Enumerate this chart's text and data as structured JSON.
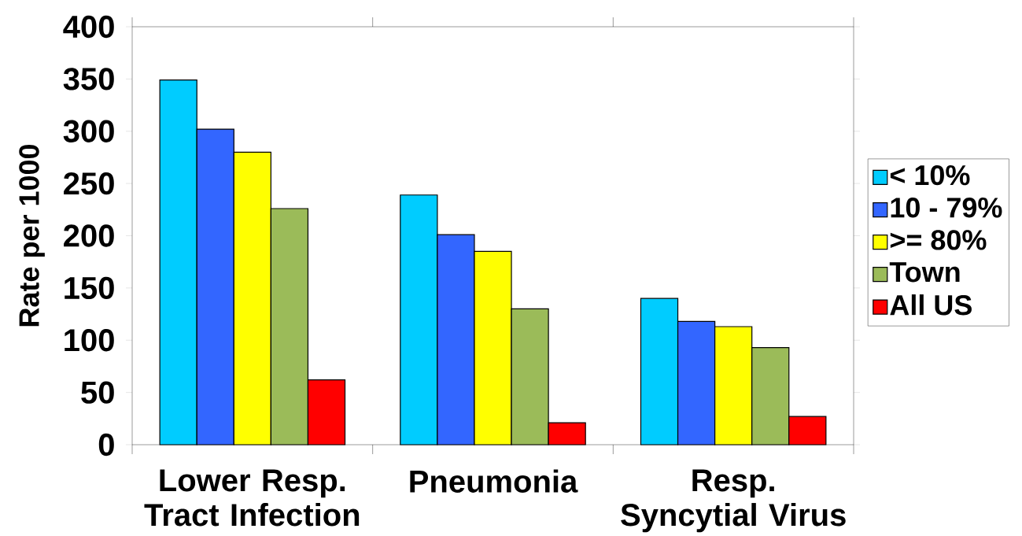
{
  "chart_data": {
    "type": "bar",
    "ylabel": "Rate per 1000",
    "categories": [
      "Lower Resp. Tract Infection",
      "Pneumonia",
      "Resp. Syncytial Virus"
    ],
    "series": [
      {
        "name": "< 10%",
        "color": "#00ccff",
        "values": [
          349,
          239,
          140
        ]
      },
      {
        "name": "10 - 79%",
        "color": "#3366ff",
        "values": [
          302,
          201,
          118
        ]
      },
      {
        "name": ">= 80%",
        "color": "#ffff00",
        "values": [
          280,
          185,
          113
        ]
      },
      {
        "name": "Town",
        "color": "#9bbb59",
        "values": [
          226,
          130,
          93
        ]
      },
      {
        "name": "All US",
        "color": "#ff0000",
        "values": [
          62,
          21,
          27
        ]
      }
    ],
    "ylim": [
      0,
      400
    ],
    "yticks": [
      0,
      50,
      100,
      150,
      200,
      250,
      300,
      350,
      400
    ],
    "grid": false,
    "legend": "right"
  }
}
